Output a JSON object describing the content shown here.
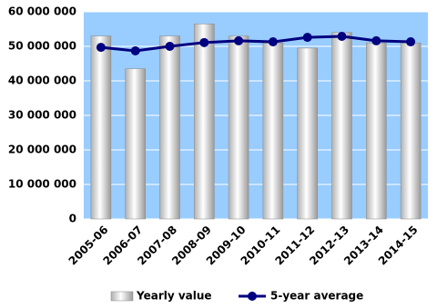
{
  "chart_data": {
    "type": "bar",
    "categories": [
      "2005-06",
      "2006-07",
      "2007-08",
      "2008-09",
      "2009-10",
      "2010-11",
      "2011-12",
      "2012-13",
      "2013-14",
      "2014-15"
    ],
    "series": [
      {
        "name": "Yearly value",
        "type": "bar",
        "color": "#ffffff",
        "values": [
          53000000,
          43500000,
          53000000,
          56500000,
          53000000,
          51000000,
          49500000,
          54000000,
          51000000,
          51000000
        ]
      },
      {
        "name": "5-year average",
        "type": "line",
        "color": "#000080",
        "values": [
          49700000,
          48700000,
          50000000,
          51100000,
          51600000,
          51300000,
          52600000,
          52900000,
          51600000,
          51300000
        ]
      }
    ],
    "ylim": [
      0,
      60000000
    ],
    "yticks": [
      0,
      {
        "value": 10000000,
        "label": "10 000 000"
      },
      {
        "value": 20000000,
        "label": "20 000 000"
      },
      {
        "value": 30000000,
        "label": "30 000 000"
      },
      {
        "value": 40000000,
        "label": "40 000 000"
      },
      {
        "value": 50000000,
        "label": "50 000 000"
      },
      {
        "value": 60000000,
        "label": "60 000 000"
      }
    ],
    "grid": true,
    "plot_background": "#99ccff",
    "legend": "bottom"
  }
}
